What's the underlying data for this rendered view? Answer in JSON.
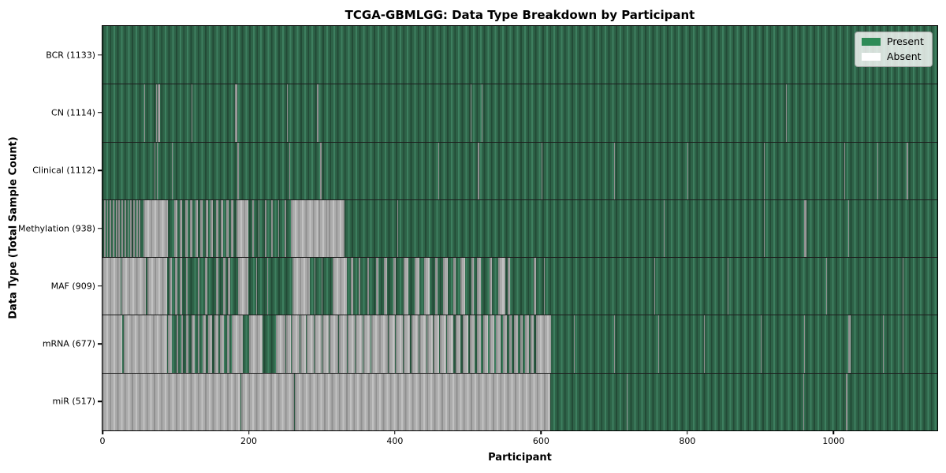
{
  "chart_data": {
    "type": "heatmap",
    "title": "TCGA-GBMLGG: Data Type Breakdown by Participant",
    "xlabel": "Participant",
    "ylabel": "Data Type (Total Sample Count)",
    "x_ticks": [
      0,
      200,
      400,
      600,
      800,
      1000
    ],
    "x_domain": [
      0,
      1142
    ],
    "n_participants": 1133,
    "grid": false,
    "colors": {
      "present_fill": "#2E8B57",
      "absent_fill": "#FFFFFF",
      "bar_edge": "#000000",
      "row_separator": "#1c1c1c"
    },
    "legend": {
      "position": "upper right",
      "entries": [
        {
          "label": "Present",
          "color": "#2E8B57"
        },
        {
          "label": "Absent",
          "color": "#FFFFFF"
        }
      ]
    },
    "rows": [
      {
        "name": "BCR",
        "label": "BCR (1133)",
        "total_samples": 1133,
        "absent_runs": []
      },
      {
        "name": "CN",
        "label": "CN (1114)",
        "total_samples": 1114,
        "absent_runs": [
          [
            57,
            57
          ],
          [
            73,
            73
          ],
          [
            76,
            78
          ],
          [
            103,
            103
          ],
          [
            122,
            122
          ],
          [
            181,
            183
          ],
          [
            252,
            252
          ],
          [
            293,
            295
          ],
          [
            504,
            504
          ],
          [
            519,
            519
          ],
          [
            873,
            873
          ],
          [
            935,
            935
          ]
        ]
      },
      {
        "name": "Clinical",
        "label": "Clinical (1112)",
        "total_samples": 1112,
        "absent_runs": [
          [
            71,
            71
          ],
          [
            74,
            75
          ],
          [
            95,
            95
          ],
          [
            184,
            186
          ],
          [
            256,
            256
          ],
          [
            298,
            299
          ],
          [
            419,
            419
          ],
          [
            459,
            459
          ],
          [
            513,
            514
          ],
          [
            601,
            601
          ],
          [
            700,
            700
          ],
          [
            800,
            800
          ],
          [
            905,
            905
          ],
          [
            1015,
            1015
          ],
          [
            1060,
            1060
          ],
          [
            1100,
            1101
          ]
        ]
      },
      {
        "name": "Methylation",
        "label": "Methylation (938)",
        "total_samples": 938,
        "absent_runs": [
          [
            2,
            3
          ],
          [
            6,
            7
          ],
          [
            10,
            11
          ],
          [
            14,
            15
          ],
          [
            18,
            19
          ],
          [
            22,
            23
          ],
          [
            26,
            27
          ],
          [
            30,
            31
          ],
          [
            34,
            35
          ],
          [
            38,
            39
          ],
          [
            42,
            43
          ],
          [
            46,
            47
          ],
          [
            50,
            51
          ],
          [
            56,
            88
          ],
          [
            98,
            101
          ],
          [
            106,
            108
          ],
          [
            113,
            115
          ],
          [
            120,
            122
          ],
          [
            127,
            129
          ],
          [
            134,
            136
          ],
          [
            141,
            143
          ],
          [
            148,
            150
          ],
          [
            155,
            157
          ],
          [
            162,
            164
          ],
          [
            169,
            171
          ],
          [
            176,
            178
          ],
          [
            183,
            198
          ],
          [
            205,
            206
          ],
          [
            213,
            214
          ],
          [
            222,
            223
          ],
          [
            231,
            232
          ],
          [
            240,
            241
          ],
          [
            249,
            250
          ],
          [
            258,
            294
          ],
          [
            296,
            308
          ],
          [
            310,
            330
          ],
          [
            403,
            403
          ],
          [
            768,
            768
          ],
          [
            905,
            905
          ],
          [
            960,
            962
          ],
          [
            1020,
            1020
          ]
        ]
      },
      {
        "name": "MAF",
        "label": "MAF (909)",
        "total_samples": 909,
        "absent_runs": [
          [
            0,
            24
          ],
          [
            26,
            58
          ],
          [
            61,
            87
          ],
          [
            92,
            94
          ],
          [
            99,
            101
          ],
          [
            106,
            108
          ],
          [
            114,
            116
          ],
          [
            130,
            132
          ],
          [
            140,
            142
          ],
          [
            155,
            157
          ],
          [
            165,
            167
          ],
          [
            172,
            174
          ],
          [
            185,
            198
          ],
          [
            210,
            210
          ],
          [
            225,
            225
          ],
          [
            240,
            240
          ],
          [
            260,
            283
          ],
          [
            290,
            290
          ],
          [
            300,
            300
          ],
          [
            315,
            333
          ],
          [
            340,
            342
          ],
          [
            350,
            352
          ],
          [
            362,
            364
          ],
          [
            374,
            376
          ],
          [
            385,
            388
          ],
          [
            398,
            400
          ],
          [
            412,
            417
          ],
          [
            427,
            433
          ],
          [
            440,
            446
          ],
          [
            455,
            457
          ],
          [
            466,
            471
          ],
          [
            480,
            482
          ],
          [
            490,
            495
          ],
          [
            505,
            507
          ],
          [
            512,
            517
          ],
          [
            530,
            532
          ],
          [
            541,
            550
          ],
          [
            554,
            556
          ],
          [
            570,
            570
          ],
          [
            590,
            592
          ],
          [
            604,
            604
          ],
          [
            755,
            755
          ],
          [
            855,
            855
          ],
          [
            990,
            990
          ],
          [
            1095,
            1095
          ]
        ]
      },
      {
        "name": "mRNA",
        "label": "mRNA (677)",
        "total_samples": 677,
        "absent_runs": [
          [
            0,
            26
          ],
          [
            29,
            87
          ],
          [
            89,
            94
          ],
          [
            101,
            102
          ],
          [
            108,
            109
          ],
          [
            114,
            117
          ],
          [
            122,
            125
          ],
          [
            130,
            132
          ],
          [
            137,
            140
          ],
          [
            145,
            149
          ],
          [
            153,
            157
          ],
          [
            161,
            165
          ],
          [
            170,
            173
          ],
          [
            177,
            191
          ],
          [
            201,
            218
          ],
          [
            237,
            249
          ],
          [
            251,
            257
          ],
          [
            259,
            269
          ],
          [
            271,
            277
          ],
          [
            279,
            288
          ],
          [
            290,
            299
          ],
          [
            301,
            309
          ],
          [
            311,
            321
          ],
          [
            323,
            333
          ],
          [
            335,
            344
          ],
          [
            346,
            355
          ],
          [
            357,
            366
          ],
          [
            368,
            377
          ],
          [
            379,
            389
          ],
          [
            391,
            399
          ],
          [
            401,
            410
          ],
          [
            412,
            420
          ],
          [
            423,
            431
          ],
          [
            433,
            442
          ],
          [
            444,
            451
          ],
          [
            453,
            460
          ],
          [
            462,
            469
          ],
          [
            471,
            479
          ],
          [
            483,
            489
          ],
          [
            493,
            499
          ],
          [
            503,
            508
          ],
          [
            512,
            517
          ],
          [
            521,
            526
          ],
          [
            530,
            535
          ],
          [
            538,
            544
          ],
          [
            548,
            552
          ],
          [
            556,
            559
          ],
          [
            563,
            567
          ],
          [
            571,
            574
          ],
          [
            578,
            582
          ],
          [
            586,
            589
          ],
          [
            593,
            613
          ],
          [
            645,
            645
          ],
          [
            700,
            700
          ],
          [
            760,
            760
          ],
          [
            823,
            823
          ],
          [
            900,
            900
          ],
          [
            960,
            960
          ],
          [
            1020,
            1022
          ],
          [
            1068,
            1068
          ],
          [
            1095,
            1095
          ]
        ]
      },
      {
        "name": "miR",
        "label": "miR (517)",
        "total_samples": 517,
        "absent_runs": [
          [
            0,
            188
          ],
          [
            190,
            261
          ],
          [
            263,
            611
          ],
          [
            667,
            667
          ],
          [
            717,
            717
          ],
          [
            959,
            959
          ],
          [
            1017,
            1018
          ]
        ]
      }
    ]
  }
}
